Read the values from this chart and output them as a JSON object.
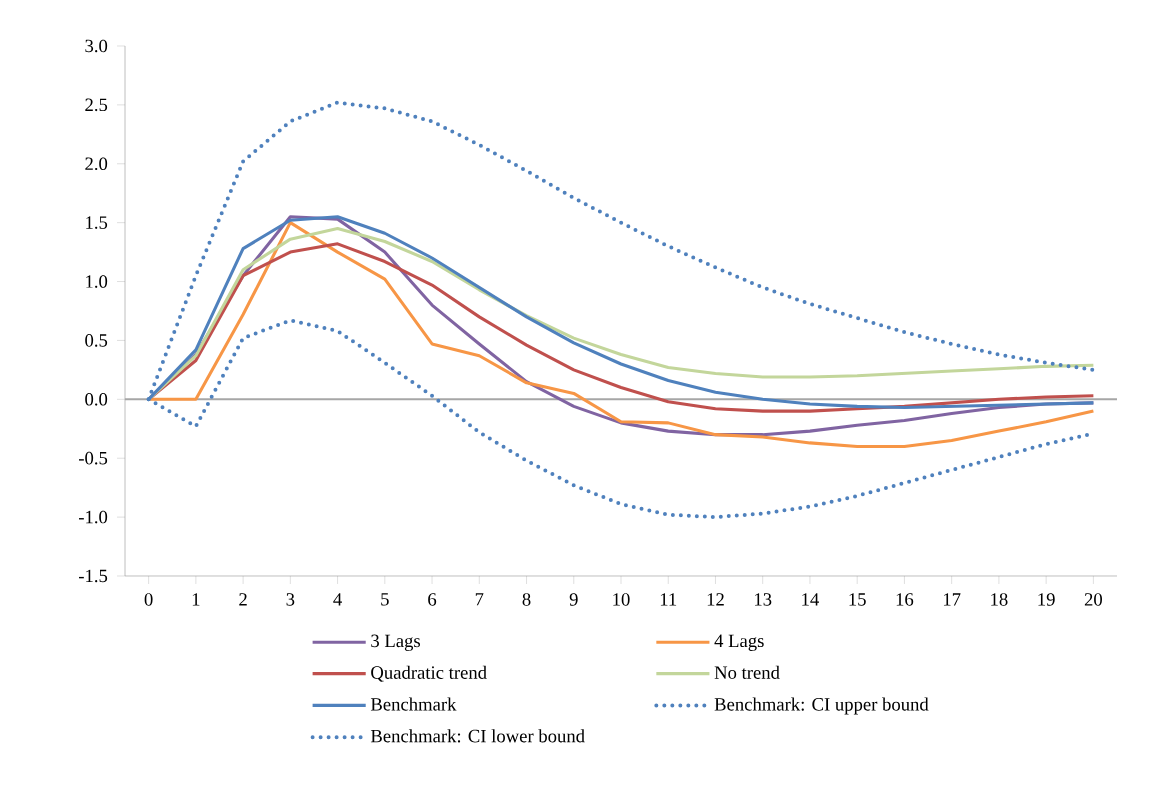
{
  "chart_data": {
    "type": "line",
    "x": [
      0,
      1,
      2,
      3,
      4,
      5,
      6,
      7,
      8,
      9,
      10,
      11,
      12,
      13,
      14,
      15,
      16,
      17,
      18,
      19,
      20
    ],
    "xlim": [
      -0.5,
      20.5
    ],
    "xticks": [
      0,
      1,
      2,
      3,
      4,
      5,
      6,
      7,
      8,
      9,
      10,
      11,
      12,
      13,
      14,
      15,
      16,
      17,
      18,
      19,
      20
    ],
    "ylim": [
      -1.5,
      3.0
    ],
    "yticks": [
      {
        "value": -1.5,
        "label": "-1.5"
      },
      {
        "value": -1.0,
        "label": "-1.0"
      },
      {
        "value": -0.5,
        "label": "-0.5"
      },
      {
        "value": 0,
        "label": "0.0"
      },
      {
        "value": 0.5,
        "label": "0.5"
      },
      {
        "value": 1.0,
        "label": "1.0"
      },
      {
        "value": 1.5,
        "label": "1.5"
      },
      {
        "value": 2.0,
        "label": "2.0"
      },
      {
        "value": 2.5,
        "label": "2.5"
      },
      {
        "value": 3.0,
        "label": "3.0"
      }
    ],
    "grid": false,
    "legend": "bottom",
    "marker": "none",
    "ref_lines": [
      {
        "axis": "y",
        "value": 0,
        "color": "#a6a6a6"
      }
    ],
    "series": [
      {
        "name": "3 Lags",
        "color": "#8064a2",
        "line_style": "solid",
        "values": [
          0,
          0.38,
          1.05,
          1.55,
          1.53,
          1.25,
          0.8,
          0.47,
          0.15,
          -0.06,
          -0.2,
          -0.27,
          -0.3,
          -0.3,
          -0.27,
          -0.22,
          -0.18,
          -0.12,
          -0.07,
          -0.04,
          -0.03
        ]
      },
      {
        "name": "4 Lags",
        "color": "#f79646",
        "line_style": "solid",
        "values": [
          0,
          0,
          0.72,
          1.5,
          1.25,
          1.02,
          0.47,
          0.37,
          0.14,
          0.05,
          -0.19,
          -0.2,
          -0.3,
          -0.32,
          -0.37,
          -0.4,
          -0.4,
          -0.35,
          -0.27,
          -0.19,
          -0.1
        ]
      },
      {
        "name": "Quadratic trend",
        "color": "#c0504d",
        "line_style": "solid",
        "values": [
          0,
          0.33,
          1.05,
          1.25,
          1.32,
          1.17,
          0.97,
          0.7,
          0.46,
          0.25,
          0.1,
          -0.02,
          -0.08,
          -0.1,
          -0.1,
          -0.08,
          -0.06,
          -0.03,
          0.0,
          0.02,
          0.03
        ]
      },
      {
        "name": "No trend",
        "color": "#c3d69b",
        "line_style": "solid",
        "values": [
          0,
          0.37,
          1.1,
          1.36,
          1.45,
          1.34,
          1.17,
          0.93,
          0.71,
          0.52,
          0.38,
          0.27,
          0.22,
          0.19,
          0.19,
          0.2,
          0.22,
          0.24,
          0.26,
          0.28,
          0.29
        ]
      },
      {
        "name": "Benchmark",
        "color": "#4f81bd",
        "line_style": "solid",
        "values": [
          0,
          0.42,
          1.28,
          1.52,
          1.55,
          1.41,
          1.2,
          0.95,
          0.7,
          0.48,
          0.3,
          0.16,
          0.06,
          0.0,
          -0.04,
          -0.06,
          -0.07,
          -0.06,
          -0.05,
          -0.04,
          -0.03
        ]
      },
      {
        "name": "Benchmark: CI upper bound",
        "color": "#4f81bd",
        "line_style": "dotted",
        "values": [
          0,
          1.05,
          2.02,
          2.36,
          2.52,
          2.47,
          2.36,
          2.16,
          1.94,
          1.71,
          1.5,
          1.3,
          1.12,
          0.95,
          0.81,
          0.69,
          0.57,
          0.47,
          0.38,
          0.31,
          0.25
        ]
      },
      {
        "name": "Benchmark: CI lower bound",
        "color": "#4f81bd",
        "line_style": "dotted",
        "values": [
          0,
          -0.23,
          0.52,
          0.67,
          0.58,
          0.31,
          0.03,
          -0.28,
          -0.52,
          -0.73,
          -0.89,
          -0.98,
          -1.0,
          -0.97,
          -0.91,
          -0.82,
          -0.71,
          -0.6,
          -0.49,
          -0.38,
          -0.29
        ]
      }
    ]
  }
}
